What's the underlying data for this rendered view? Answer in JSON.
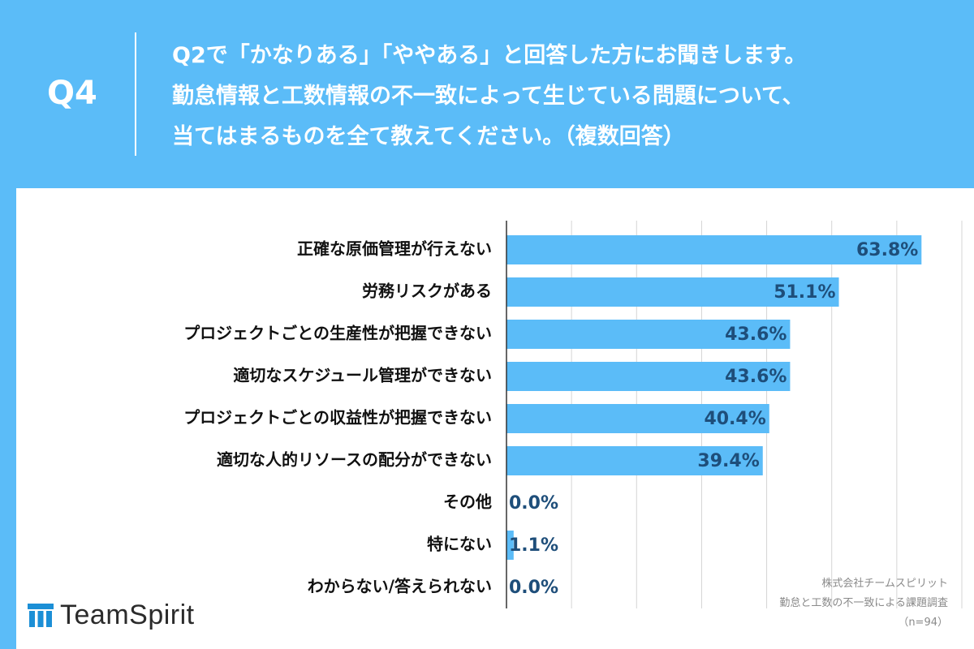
{
  "header": {
    "q_number": "Q4",
    "question_lines": [
      "Q2で「かなりある」「ややある」と回答した方にお聞きします。",
      "勤怠情報と工数情報の不一致によって生じている問題について、",
      "当てはまるものを全て教えてください。（複数回答）"
    ]
  },
  "chart_data": {
    "type": "bar",
    "orientation": "horizontal",
    "categories": [
      "正確な原価管理が行えない",
      "労務リスクがある",
      "プロジェクトごとの生産性が把握できない",
      "適切なスケジュール管理ができない",
      "プロジェクトごとの収益性が把握できない",
      "適切な人的リソースの配分ができない",
      "その他",
      "特にない",
      "わからない/答えられない"
    ],
    "values": [
      63.8,
      51.1,
      43.6,
      43.6,
      40.4,
      39.4,
      0.0,
      1.1,
      0.0
    ],
    "value_labels": [
      "63.8%",
      "51.1%",
      "43.6%",
      "43.6%",
      "40.4%",
      "39.4%",
      "0.0%",
      "1.1%",
      "0.0%"
    ],
    "xlim": [
      0,
      70
    ],
    "grid": true,
    "bar_color": "#5bbcf8",
    "label_color": "#1e4e7a"
  },
  "logo": {
    "text": "TeamSpirit",
    "icon": "teamspirit-logo-icon"
  },
  "source": {
    "lines": [
      "株式会社チームスピリット",
      "勤怠と工数の不一致による課題調査",
      "（n=94）"
    ]
  }
}
